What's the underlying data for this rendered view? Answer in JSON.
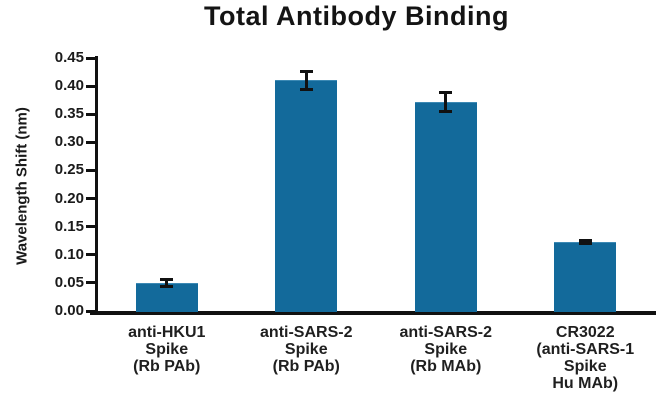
{
  "chart_data": {
    "type": "bar",
    "title": "Total Antibody Binding",
    "xlabel": "",
    "ylabel": "Wavelength Shift (nm)",
    "ylim": [
      0,
      0.45
    ],
    "grid": false,
    "legend": false,
    "yticks": [
      "0.00",
      "0.05",
      "0.10",
      "0.15",
      "0.20",
      "0.25",
      "0.30",
      "0.35",
      "0.40",
      "0.45"
    ],
    "categories": [
      [
        "anti-HKU1",
        "Spike",
        "(Rb PAb)"
      ],
      [
        "anti-SARS-2",
        "Spike",
        "(Rb PAb)"
      ],
      [
        "anti-SARS-2",
        "Spike",
        "(Rb MAb)"
      ],
      [
        "CR3022",
        "(anti-SARS-1",
        "Spike",
        "Hu MAb)"
      ]
    ],
    "values": [
      0.05,
      0.41,
      0.372,
      0.123
    ],
    "errors": [
      0.006,
      0.016,
      0.017,
      0.003
    ],
    "bar_color": "#136a9b",
    "error_color": "#111111",
    "axis_color": "#111111",
    "text_color": "#1a1a1a"
  }
}
